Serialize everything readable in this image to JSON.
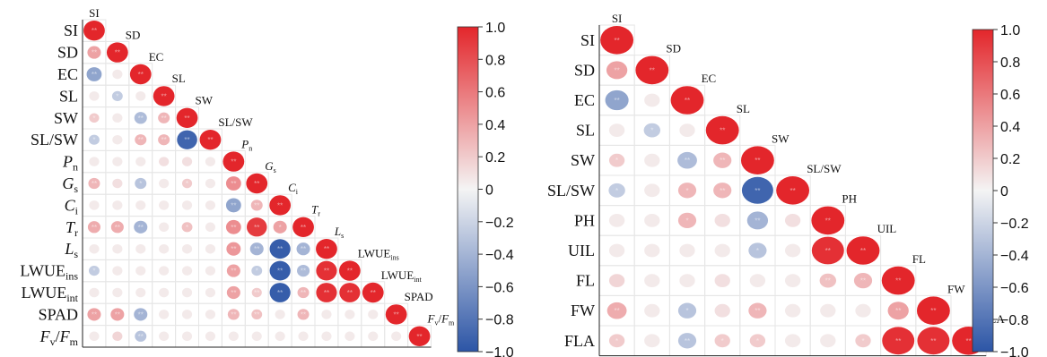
{
  "chart_data": [
    {
      "type": "heatmap",
      "subtype": "lower-triangular correlation matrix (circle size and colour = r)",
      "title": "",
      "variables": [
        {
          "base": "SI",
          "sub": "",
          "italic": false
        },
        {
          "base": "SD",
          "sub": "",
          "italic": false
        },
        {
          "base": "EC",
          "sub": "",
          "italic": false
        },
        {
          "base": "SL",
          "sub": "",
          "italic": false
        },
        {
          "base": "SW",
          "sub": "",
          "italic": false
        },
        {
          "base": "SL/SW",
          "sub": "",
          "italic": false
        },
        {
          "base": "P",
          "sub": "n",
          "italic": true
        },
        {
          "base": "G",
          "sub": "s",
          "italic": true
        },
        {
          "base": "C",
          "sub": "i",
          "italic": true
        },
        {
          "base": "T",
          "sub": "r",
          "italic": true
        },
        {
          "base": "L",
          "sub": "s",
          "italic": true
        },
        {
          "base": "LWUE",
          "sub": "ins",
          "italic": false
        },
        {
          "base": "LWUE",
          "sub": "int",
          "italic": false
        },
        {
          "base": "SPAD",
          "sub": "",
          "italic": false
        },
        {
          "base": "F",
          "sub": "v",
          "italic": true,
          "tail": "/",
          "base2": "F",
          "sub2": "m"
        }
      ],
      "matrix": [
        [
          1.0
        ],
        [
          0.4,
          1.0
        ],
        [
          -0.5,
          0.05,
          1.0
        ],
        [
          0.05,
          -0.25,
          0.05,
          1.0
        ],
        [
          0.2,
          0.05,
          -0.35,
          0.3,
          1.0
        ],
        [
          -0.25,
          0.05,
          0.3,
          0.3,
          -0.9,
          1.0
        ],
        [
          0.05,
          0.05,
          0.05,
          0.1,
          0.1,
          0.05,
          1.0
        ],
        [
          0.3,
          0.1,
          -0.3,
          0.05,
          0.2,
          0.05,
          0.5,
          1.0
        ],
        [
          0.05,
          0.05,
          0.05,
          0.05,
          0.05,
          0.05,
          -0.5,
          0.3,
          1.0
        ],
        [
          0.35,
          0.35,
          -0.4,
          0.05,
          0.25,
          0.05,
          0.5,
          0.9,
          0.4,
          1.0
        ],
        [
          0.05,
          0.05,
          0.05,
          0.05,
          0.05,
          0.05,
          0.45,
          -0.4,
          -0.95,
          -0.4,
          1.0
        ],
        [
          -0.25,
          0.05,
          0.05,
          0.05,
          0.05,
          0.05,
          0.4,
          -0.25,
          -0.95,
          -0.35,
          0.95,
          1.0
        ],
        [
          0.05,
          0.05,
          0.05,
          0.05,
          0.05,
          0.05,
          0.4,
          0.2,
          -0.95,
          0.3,
          0.95,
          0.95,
          1.0
        ],
        [
          0.4,
          0.4,
          -0.4,
          0.05,
          0.05,
          0.05,
          0.3,
          0.25,
          0.05,
          0.3,
          0.05,
          0.05,
          0.05,
          1.0
        ],
        [
          0.05,
          0.15,
          -0.3,
          0.05,
          0.05,
          0.05,
          0.05,
          0.05,
          0.05,
          0.05,
          0.05,
          0.05,
          0.05,
          0.05,
          1.0
        ]
      ],
      "significance": [
        [
          2
        ],
        [
          2,
          2
        ],
        [
          2,
          0,
          2
        ],
        [
          0,
          1,
          0,
          2
        ],
        [
          1,
          0,
          2,
          2,
          2
        ],
        [
          1,
          0,
          2,
          2,
          2,
          2
        ],
        [
          0,
          0,
          0,
          0,
          0,
          0,
          2
        ],
        [
          2,
          0,
          1,
          0,
          1,
          0,
          2,
          2
        ],
        [
          0,
          0,
          0,
          0,
          0,
          0,
          2,
          2,
          2
        ],
        [
          2,
          2,
          2,
          0,
          1,
          0,
          2,
          2,
          1,
          2
        ],
        [
          0,
          0,
          0,
          0,
          0,
          0,
          2,
          2,
          2,
          2,
          2
        ],
        [
          1,
          0,
          0,
          0,
          0,
          0,
          2,
          1,
          2,
          2,
          2,
          2
        ],
        [
          0,
          0,
          0,
          0,
          0,
          0,
          2,
          2,
          2,
          2,
          2,
          2,
          2
        ],
        [
          2,
          2,
          2,
          0,
          0,
          0,
          2,
          2,
          0,
          2,
          0,
          0,
          0,
          2
        ],
        [
          0,
          0,
          2,
          0,
          0,
          0,
          0,
          0,
          0,
          0,
          0,
          0,
          0,
          0,
          2
        ]
      ],
      "colorbar": {
        "min": -1.0,
        "max": 1.0,
        "ticks": [
          "1.0",
          "0.8",
          "0.6",
          "0.4",
          "0.2",
          "0",
          "−0.2",
          "−0.4",
          "−0.6",
          "−0.8",
          "−1.0"
        ]
      },
      "colors": {
        "positive": "#e3262b",
        "zero": "#f4f4f4",
        "negative": "#2c55a6"
      },
      "significance_marks": {
        "1": "*",
        "2": "**"
      }
    },
    {
      "type": "heatmap",
      "subtype": "lower-triangular correlation matrix (circle size and colour = r)",
      "title": "",
      "variables": [
        {
          "base": "SI",
          "sub": "",
          "italic": false
        },
        {
          "base": "SD",
          "sub": "",
          "italic": false
        },
        {
          "base": "EC",
          "sub": "",
          "italic": false
        },
        {
          "base": "SL",
          "sub": "",
          "italic": false
        },
        {
          "base": "SW",
          "sub": "",
          "italic": false
        },
        {
          "base": "SL/SW",
          "sub": "",
          "italic": false
        },
        {
          "base": "PH",
          "sub": "",
          "italic": false
        },
        {
          "base": "UIL",
          "sub": "",
          "italic": false
        },
        {
          "base": "FL",
          "sub": "",
          "italic": false
        },
        {
          "base": "FW",
          "sub": "",
          "italic": false
        },
        {
          "base": "FLA",
          "sub": "",
          "italic": false
        }
      ],
      "matrix": [
        [
          1.0
        ],
        [
          0.4,
          1.0
        ],
        [
          -0.5,
          0.05,
          1.0
        ],
        [
          0.05,
          -0.25,
          0.05,
          1.0
        ],
        [
          0.2,
          0.05,
          -0.35,
          0.3,
          1.0
        ],
        [
          -0.25,
          0.05,
          0.3,
          0.3,
          -0.9,
          1.0
        ],
        [
          0.05,
          0.05,
          0.3,
          0.1,
          -0.4,
          0.1,
          1.0
        ],
        [
          0.05,
          0.05,
          0.05,
          0.05,
          -0.3,
          0.05,
          0.95,
          1.0
        ],
        [
          0.15,
          0.05,
          0.05,
          0.1,
          0.05,
          0.05,
          0.25,
          0.3,
          1.0
        ],
        [
          0.35,
          0.05,
          -0.3,
          0.1,
          0.3,
          0.05,
          0.05,
          0.05,
          0.4,
          1.0
        ],
        [
          0.2,
          0.05,
          -0.3,
          0.2,
          0.2,
          0.05,
          0.05,
          0.2,
          0.95,
          0.95,
          1.0
        ]
      ],
      "significance": [
        [
          2
        ],
        [
          2,
          2
        ],
        [
          2,
          0,
          2
        ],
        [
          0,
          1,
          0,
          2
        ],
        [
          1,
          0,
          2,
          2,
          2
        ],
        [
          1,
          0,
          1,
          2,
          2,
          2
        ],
        [
          0,
          0,
          1,
          0,
          2,
          0,
          2
        ],
        [
          0,
          0,
          0,
          0,
          1,
          0,
          2,
          2
        ],
        [
          0,
          0,
          0,
          0,
          0,
          0,
          2,
          2,
          2
        ],
        [
          2,
          0,
          1,
          0,
          2,
          0,
          0,
          0,
          2,
          2
        ],
        [
          1,
          0,
          2,
          1,
          1,
          0,
          0,
          1,
          2,
          2,
          2
        ]
      ],
      "colorbar": {
        "min": -1.0,
        "max": 1.0,
        "ticks": [
          "1.0",
          "0.8",
          "0.6",
          "0.4",
          "0.2",
          "0",
          "−0.2",
          "−0.4",
          "−0.6",
          "−0.8",
          "−1.0"
        ]
      },
      "colors": {
        "positive": "#e3262b",
        "zero": "#f4f4f4",
        "negative": "#2c55a6"
      },
      "significance_marks": {
        "1": "*",
        "2": "**"
      }
    }
  ]
}
